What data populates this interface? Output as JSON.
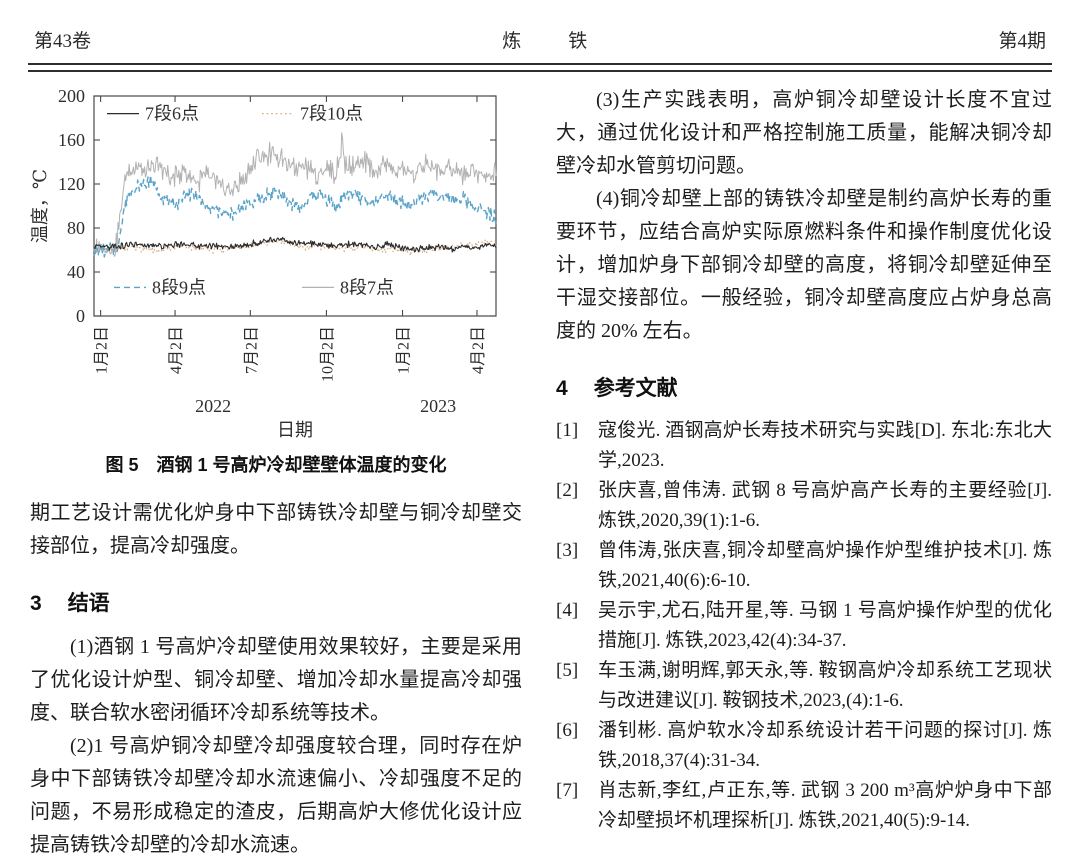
{
  "header": {
    "volume": "第43卷",
    "journal": "炼　铁",
    "issue": "第4期"
  },
  "figure": {
    "caption": "图 5　酒钢 1 号高炉冷却壁壁体温度的变化"
  },
  "chart_data": {
    "type": "line",
    "title": "",
    "xlabel": "日期",
    "ylabel": "温度，℃",
    "ylim": [
      0,
      200
    ],
    "yticks": [
      0,
      40,
      80,
      120,
      160,
      200
    ],
    "x_domain_days": [
      -8,
      478
    ],
    "xticks": [
      {
        "label": "1月2日",
        "day": 0
      },
      {
        "label": "4月2日",
        "day": 90
      },
      {
        "label": "7月2日",
        "day": 181
      },
      {
        "label": "10月2日",
        "day": 273
      },
      {
        "label": "1月2日",
        "day": 365
      },
      {
        "label": "4月2日",
        "day": 455
      }
    ],
    "year_labels": [
      {
        "label": "2022",
        "day": 136
      },
      {
        "label": "2023",
        "day": 408
      }
    ],
    "grid": false,
    "legend_position": "inside top-left and inside bottom-left",
    "series": [
      {
        "name": "8段7点",
        "color": "#b2b2b2",
        "dash": "solid",
        "width": 1.0,
        "noise": 12,
        "seed": 3,
        "zorder": 1,
        "legend_row": "bottom",
        "anchors": [
          [
            -8,
            60
          ],
          [
            10,
            61
          ],
          [
            18,
            63
          ],
          [
            24,
            92
          ],
          [
            30,
            128
          ],
          [
            40,
            136
          ],
          [
            55,
            130
          ],
          [
            70,
            138
          ],
          [
            85,
            125
          ],
          [
            100,
            131
          ],
          [
            115,
            122
          ],
          [
            130,
            128
          ],
          [
            145,
            118
          ],
          [
            160,
            114
          ],
          [
            175,
            128
          ],
          [
            190,
            142
          ],
          [
            205,
            148
          ],
          [
            215,
            145
          ],
          [
            225,
            140
          ],
          [
            235,
            133
          ],
          [
            245,
            138
          ],
          [
            260,
            128
          ],
          [
            270,
            136
          ],
          [
            282,
            130
          ],
          [
            290,
            140
          ],
          [
            292,
            180
          ],
          [
            294,
            138
          ],
          [
            305,
            136
          ],
          [
            320,
            141
          ],
          [
            330,
            132
          ],
          [
            345,
            139
          ],
          [
            355,
            130
          ],
          [
            365,
            136
          ],
          [
            380,
            128
          ],
          [
            395,
            139
          ],
          [
            410,
            130
          ],
          [
            420,
            136
          ],
          [
            435,
            128
          ],
          [
            450,
            133
          ],
          [
            465,
            125
          ],
          [
            478,
            131
          ]
        ]
      },
      {
        "name": "8段9点",
        "color": "#5ba3c9",
        "dash": "dash",
        "width": 1.4,
        "noise": 8,
        "seed": 7,
        "zorder": 2,
        "legend_row": "bottom",
        "anchors": [
          [
            -8,
            58
          ],
          [
            12,
            60
          ],
          [
            20,
            62
          ],
          [
            26,
            86
          ],
          [
            32,
            110
          ],
          [
            45,
            118
          ],
          [
            60,
            122
          ],
          [
            75,
            108
          ],
          [
            90,
            100
          ],
          [
            105,
            112
          ],
          [
            120,
            105
          ],
          [
            135,
            98
          ],
          [
            150,
            92
          ],
          [
            165,
            95
          ],
          [
            180,
            102
          ],
          [
            195,
            108
          ],
          [
            210,
            113
          ],
          [
            225,
            105
          ],
          [
            240,
            98
          ],
          [
            255,
            110
          ],
          [
            270,
            108
          ],
          [
            285,
            100
          ],
          [
            300,
            112
          ],
          [
            315,
            108
          ],
          [
            330,
            102
          ],
          [
            345,
            110
          ],
          [
            360,
            105
          ],
          [
            375,
            100
          ],
          [
            390,
            108
          ],
          [
            405,
            112
          ],
          [
            420,
            105
          ],
          [
            435,
            108
          ],
          [
            450,
            100
          ],
          [
            465,
            95
          ],
          [
            478,
            90
          ]
        ]
      },
      {
        "name": "7段10点",
        "color": "#d8a87c",
        "dash": "dot",
        "width": 1.2,
        "noise": 3.5,
        "seed": 11,
        "zorder": 3,
        "legend_row": "top",
        "anchors": [
          [
            -8,
            60
          ],
          [
            20,
            61
          ],
          [
            45,
            62
          ],
          [
            70,
            60
          ],
          [
            95,
            63
          ],
          [
            120,
            61
          ],
          [
            145,
            60
          ],
          [
            170,
            62
          ],
          [
            195,
            66
          ],
          [
            215,
            68
          ],
          [
            235,
            64
          ],
          [
            255,
            62
          ],
          [
            275,
            63
          ],
          [
            295,
            61
          ],
          [
            315,
            62
          ],
          [
            335,
            60
          ],
          [
            355,
            61
          ],
          [
            375,
            58
          ],
          [
            395,
            60
          ],
          [
            415,
            62
          ],
          [
            435,
            64
          ],
          [
            455,
            66
          ],
          [
            470,
            68
          ],
          [
            478,
            66
          ]
        ]
      },
      {
        "name": "7段6点",
        "color": "#2b2b2b",
        "dash": "solid",
        "width": 1.1,
        "noise": 3.5,
        "seed": 17,
        "zorder": 4,
        "legend_row": "top",
        "anchors": [
          [
            -8,
            62
          ],
          [
            15,
            63
          ],
          [
            40,
            65
          ],
          [
            60,
            63
          ],
          [
            80,
            64
          ],
          [
            100,
            66
          ],
          [
            120,
            63
          ],
          [
            140,
            64
          ],
          [
            160,
            62
          ],
          [
            180,
            65
          ],
          [
            200,
            68
          ],
          [
            215,
            70
          ],
          [
            230,
            67
          ],
          [
            250,
            66
          ],
          [
            270,
            65
          ],
          [
            290,
            64
          ],
          [
            310,
            66
          ],
          [
            330,
            63
          ],
          [
            350,
            65
          ],
          [
            365,
            62
          ],
          [
            380,
            60
          ],
          [
            395,
            62
          ],
          [
            410,
            63
          ],
          [
            425,
            61
          ],
          [
            440,
            63
          ],
          [
            455,
            62
          ],
          [
            470,
            64
          ],
          [
            478,
            63
          ]
        ]
      }
    ]
  },
  "left_column": {
    "para_cont": "期工艺设计需优化炉身中下部铸铁冷却壁与铜冷却壁交接部位，提高冷却强度。",
    "section3": {
      "number": "3",
      "title": "结语"
    },
    "paragraphs": [
      "(1)酒钢 1 号高炉冷却壁使用效果较好，主要是采用了优化设计炉型、铜冷却壁、增加冷却水量提高冷却强度、联合软水密闭循环冷却系统等技术。",
      "(2)1 号高炉铜冷却壁冷却强度较合理，同时存在炉身中下部铸铁冷却壁冷却水流速偏小、冷却强度不足的问题，不易形成稳定的渣皮，后期高炉大修优化设计应提高铸铁冷却壁的冷却水流速。"
    ]
  },
  "right_column": {
    "paragraphs": [
      "(3)生产实践表明，高炉铜冷却壁设计长度不宜过大，通过优化设计和严格控制施工质量，能解决铜冷却壁冷却水管剪切问题。",
      "(4)铜冷却壁上部的铸铁冷却壁是制约高炉长寿的重要环节，应结合高炉实际原燃料条件和操作制度优化设计，增加炉身下部铜冷却壁的高度，将铜冷却壁延伸至干湿交接部位。一般经验，铜冷却壁高度应占炉身总高度的 20% 左右。"
    ],
    "section4": {
      "number": "4",
      "title": "参考文献"
    },
    "references": [
      {
        "label": "[1]",
        "text": "寇俊光. 酒钢高炉长寿技术研究与实践[D]. 东北:东北大学,2023."
      },
      {
        "label": "[2]",
        "text": "张庆喜,曾伟涛. 武钢 8 号高炉高产长寿的主要经验[J]. 炼铁,2020,39(1):1-6."
      },
      {
        "label": "[3]",
        "text": "曾伟涛,张庆喜,铜冷却壁高炉操作炉型维护技术[J]. 炼铁,2021,40(6):6-10."
      },
      {
        "label": "[4]",
        "text": "吴示宇,尤石,陆开星,等. 马钢 1 号高炉操作炉型的优化措施[J]. 炼铁,2023,42(4):34-37."
      },
      {
        "label": "[5]",
        "text": "车玉满,谢明辉,郭天永,等. 鞍钢高炉冷却系统工艺现状与改进建议[J]. 鞍钢技术,2023,(4):1-6."
      },
      {
        "label": "[6]",
        "text": "潘钊彬. 高炉软水冷却系统设计若干问题的探讨[J]. 炼铁,2018,37(4):31-34."
      },
      {
        "label": "[7]",
        "text": "肖志新,李红,卢正东,等. 武钢 3 200 m³高炉炉身中下部冷却壁损坏机理探析[J]. 炼铁,2021,40(5):9-14."
      }
    ]
  }
}
